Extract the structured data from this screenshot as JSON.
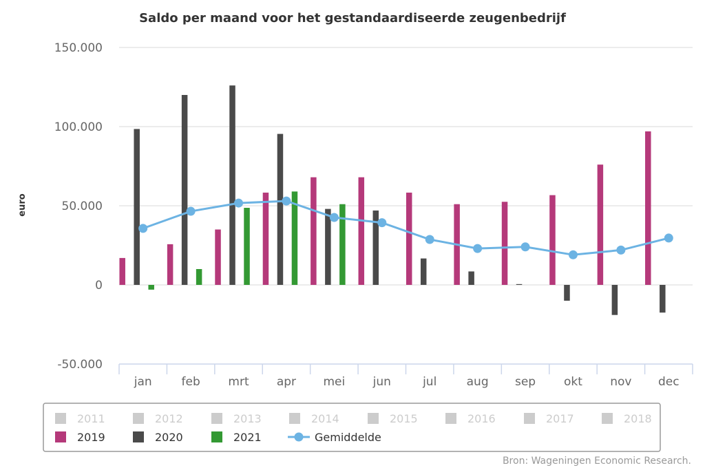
{
  "chart_data": {
    "type": "bar",
    "title": "Saldo per maand voor het gestandaardiseerde zeugenbedrijf",
    "xlabel": "",
    "ylabel": "euro",
    "ylim": [
      -50000,
      150000
    ],
    "yticks": [
      {
        "value": 150000,
        "label": "150.000"
      },
      {
        "value": 100000,
        "label": "100.000"
      },
      {
        "value": 50000,
        "label": "50.000"
      },
      {
        "value": 0,
        "label": "0"
      },
      {
        "value": -50000,
        "label": "-50.000"
      }
    ],
    "grid": true,
    "categories": [
      "jan",
      "feb",
      "mrt",
      "apr",
      "mei",
      "jun",
      "jul",
      "aug",
      "sep",
      "okt",
      "nov",
      "dec"
    ],
    "series": [
      {
        "name": "2019",
        "type": "bar",
        "color": "#b5397a",
        "values": [
          17000,
          25700,
          35000,
          58300,
          68000,
          68000,
          58300,
          51000,
          52500,
          56700,
          76000,
          97000
        ]
      },
      {
        "name": "2020",
        "type": "bar",
        "color": "#4a4a4a",
        "values": [
          98500,
          120000,
          126000,
          95400,
          48000,
          47000,
          16700,
          8500,
          500,
          -10000,
          -19000,
          -17500
        ]
      },
      {
        "name": "2021",
        "type": "bar",
        "color": "#339933",
        "values": [
          -3000,
          10000,
          48700,
          59000,
          51000,
          null,
          null,
          null,
          null,
          null,
          null,
          null
        ]
      },
      {
        "name": "Gemiddelde",
        "type": "line",
        "color": "#6cb3e3",
        "values": [
          35700,
          46500,
          51700,
          53000,
          42600,
          39300,
          28700,
          23000,
          24000,
          19000,
          22000,
          29600
        ]
      }
    ],
    "legend": {
      "placement": "bottom",
      "items": [
        {
          "name": "2011",
          "visible": false,
          "kind": "bar",
          "color": "#cccccc"
        },
        {
          "name": "2012",
          "visible": false,
          "kind": "bar",
          "color": "#cccccc"
        },
        {
          "name": "2013",
          "visible": false,
          "kind": "bar",
          "color": "#cccccc"
        },
        {
          "name": "2014",
          "visible": false,
          "kind": "bar",
          "color": "#cccccc"
        },
        {
          "name": "2015",
          "visible": false,
          "kind": "bar",
          "color": "#cccccc"
        },
        {
          "name": "2016",
          "visible": false,
          "kind": "bar",
          "color": "#cccccc"
        },
        {
          "name": "2017",
          "visible": false,
          "kind": "bar",
          "color": "#cccccc"
        },
        {
          "name": "2018",
          "visible": false,
          "kind": "bar",
          "color": "#cccccc"
        },
        {
          "name": "2019",
          "visible": true,
          "kind": "bar",
          "color": "#b5397a"
        },
        {
          "name": "2020",
          "visible": true,
          "kind": "bar",
          "color": "#4a4a4a"
        },
        {
          "name": "2021",
          "visible": true,
          "kind": "bar",
          "color": "#339933"
        },
        {
          "name": "Gemiddelde",
          "visible": true,
          "kind": "line",
          "color": "#6cb3e3"
        }
      ]
    },
    "credits": "Bron: Wageningen Economic Research."
  }
}
